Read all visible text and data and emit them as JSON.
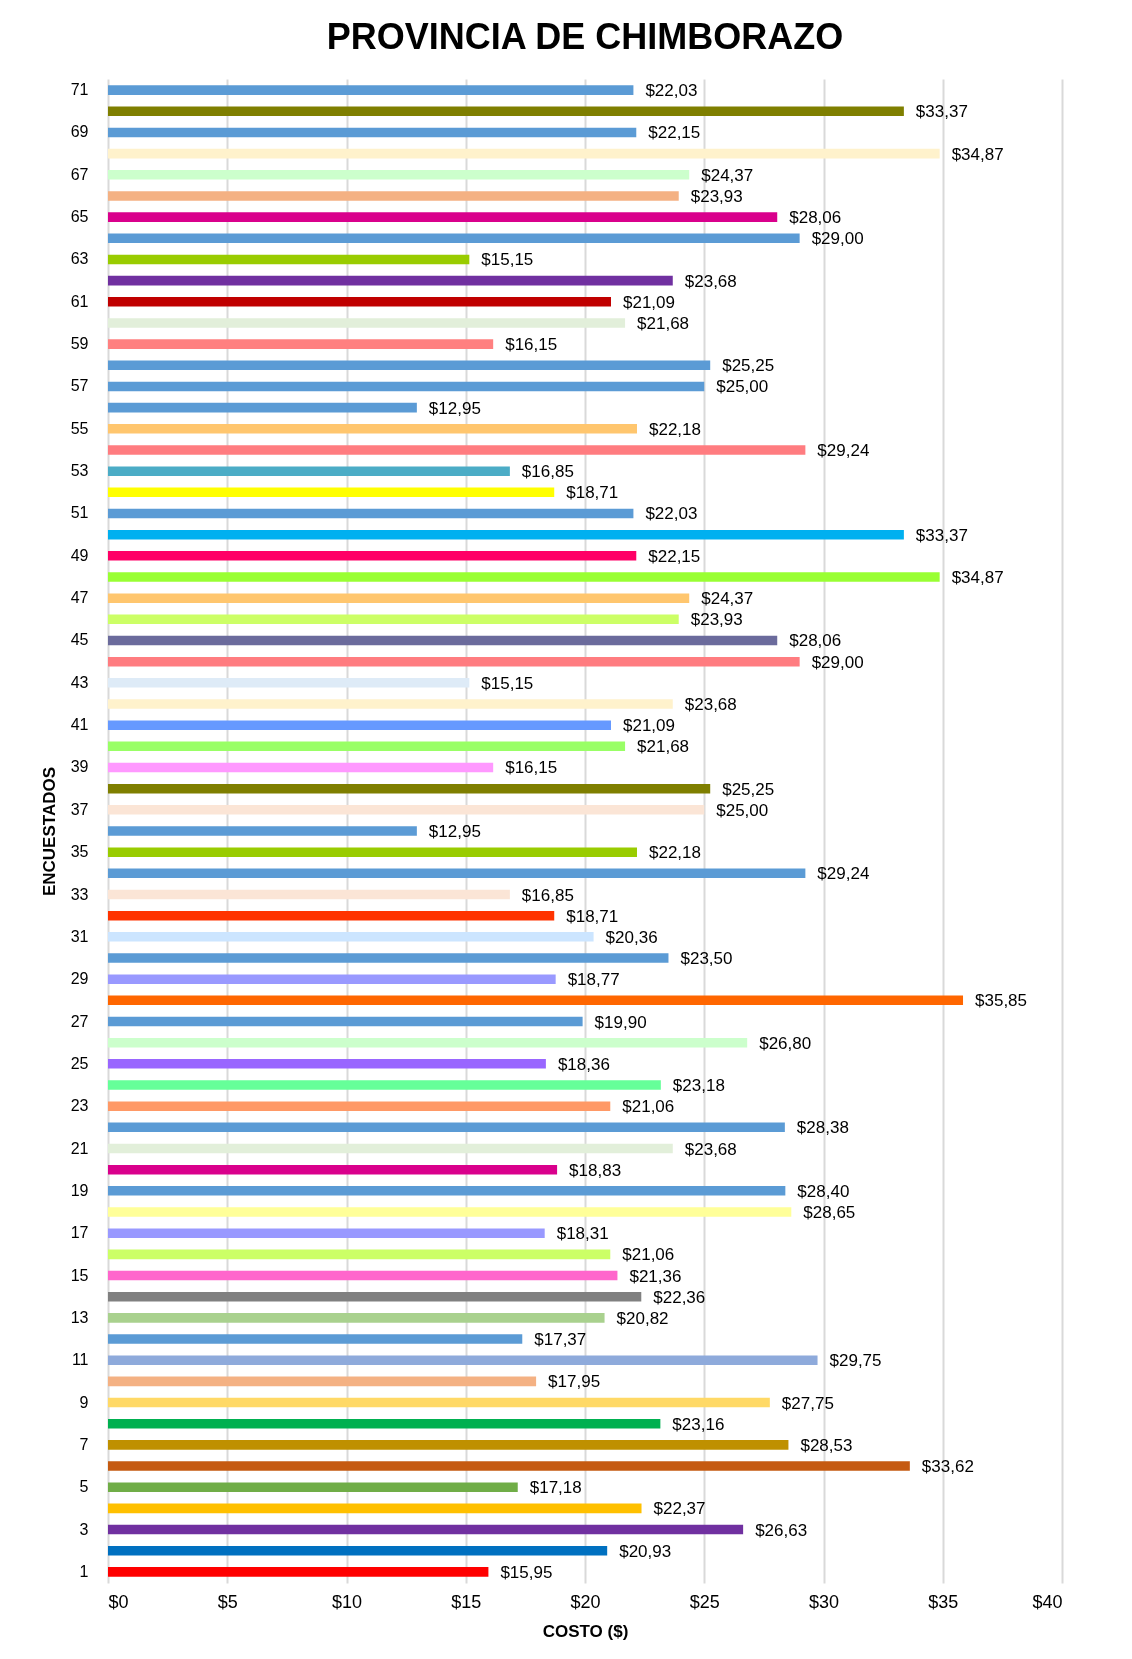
{
  "chart_data": {
    "type": "bar",
    "orientation": "horizontal",
    "title": "PROVINCIA DE CHIMBORAZO",
    "xlabel": "COSTO ($)",
    "ylabel": "ENCUESTADOS",
    "categories": [
      "71",
      null,
      "69",
      null,
      "67",
      null,
      "65",
      null,
      "63",
      null,
      "61",
      null,
      "59",
      null,
      "57",
      null,
      "55",
      null,
      "53",
      null,
      "51",
      null,
      "49",
      null,
      "47",
      null,
      "45",
      null,
      "43",
      null,
      "41",
      null,
      "39",
      null,
      "37",
      null,
      "35",
      null,
      "33",
      null,
      "31",
      null,
      "29",
      null,
      "27",
      null,
      "25",
      null,
      "23",
      null,
      "21",
      null,
      "19",
      null,
      "17",
      null,
      "15",
      null,
      "13",
      null,
      "11",
      null,
      "9",
      null,
      "7",
      null,
      "5",
      null,
      "3",
      null,
      "1"
    ],
    "values": [
      22.03,
      33.37,
      22.15,
      34.87,
      24.37,
      23.93,
      28.06,
      29.0,
      15.15,
      23.68,
      21.09,
      21.68,
      16.15,
      25.25,
      25.0,
      12.95,
      22.18,
      29.24,
      16.85,
      18.71,
      22.03,
      33.37,
      22.15,
      34.87,
      24.37,
      23.93,
      28.06,
      29.0,
      15.15,
      23.68,
      21.09,
      21.68,
      16.15,
      25.25,
      25.0,
      12.95,
      22.18,
      29.24,
      16.85,
      18.71,
      20.36,
      23.5,
      18.77,
      35.85,
      19.9,
      26.8,
      18.36,
      23.18,
      21.06,
      28.38,
      23.68,
      18.83,
      28.4,
      28.65,
      18.31,
      21.06,
      21.36,
      22.36,
      20.82,
      17.37,
      29.75,
      17.95,
      27.75,
      23.16,
      28.53,
      33.62,
      17.18,
      22.37,
      26.63,
      20.93,
      15.95
    ],
    "value_labels": [
      "$22,03",
      "$33,37",
      "$22,15",
      "$34,87",
      "$24,37",
      "$23,93",
      "$28,06",
      "$29,00",
      "$15,15",
      "$23,68",
      "$21,09",
      "$21,68",
      "$16,15",
      "$25,25",
      "$25,00",
      "$12,95",
      "$22,18",
      "$29,24",
      "$16,85",
      "$18,71",
      "$22,03",
      "$33,37",
      "$22,15",
      "$34,87",
      "$24,37",
      "$23,93",
      "$28,06",
      "$29,00",
      "$15,15",
      "$23,68",
      "$21,09",
      "$21,68",
      "$16,15",
      "$25,25",
      "$25,00",
      "$12,95",
      "$22,18",
      "$29,24",
      "$16,85",
      "$18,71",
      "$20,36",
      "$23,50",
      "$18,77",
      "$35,85",
      "$19,90",
      "$26,80",
      "$18,36",
      "$23,18",
      "$21,06",
      "$28,38",
      "$23,68",
      "$18,83",
      "$28,40",
      "$28,65",
      "$18,31",
      "$21,06",
      "$21,36",
      "$22,36",
      "$20,82",
      "$17,37",
      "$29,75",
      "$17,95",
      "$27,75",
      "$23,16",
      "$28,53",
      "$33,62",
      "$17,18",
      "$22,37",
      "$26,63",
      "$20,93",
      "$15,95"
    ],
    "colors": [
      "#5b9bd5",
      "#7f7f00",
      "#5b9bd5",
      "#fff2cc",
      "#ccffcc",
      "#f4b183",
      "#d9008c",
      "#5b9bd5",
      "#99cc00",
      "#7030a0",
      "#c00000",
      "#e2efda",
      "#ff8080",
      "#5b9bd5",
      "#5b9bd5",
      "#5b9bd5",
      "#ffc66e",
      "#ff7c80",
      "#4bacc6",
      "#ffff00",
      "#5b9bd5",
      "#00b0f0",
      "#ff0066",
      "#99ff33",
      "#ffc66e",
      "#ccff66",
      "#6b6b9c",
      "#ff7c80",
      "#deebf7",
      "#fff2cc",
      "#6699ff",
      "#99ff66",
      "#ff99ff",
      "#7f7f00",
      "#fbe5d6",
      "#5b9bd5",
      "#99cc00",
      "#5b9bd5",
      "#fbe5d6",
      "#ff3300",
      "#cce5ff",
      "#5b9bd5",
      "#9999ff",
      "#ff6600",
      "#5b9bd5",
      "#ccffcc",
      "#9966ff",
      "#66ff99",
      "#ff9966",
      "#5b9bd5",
      "#e2efda",
      "#d9008c",
      "#5b9bd5",
      "#ffff99",
      "#9999ff",
      "#ccff66",
      "#ff66cc",
      "#808080",
      "#a9d18e",
      "#5b9bd5",
      "#8eaadb",
      "#f4b183",
      "#ffd966",
      "#00b050",
      "#bf9000",
      "#c55a11",
      "#70ad47",
      "#ffc000",
      "#7030a0",
      "#0070c0",
      "#ff0000"
    ],
    "xlim": [
      0,
      40
    ],
    "xticks": [
      {
        "value": 0,
        "label": "$0"
      },
      {
        "value": 5,
        "label": "$5"
      },
      {
        "value": 10,
        "label": "$10"
      },
      {
        "value": 15,
        "label": "$15"
      },
      {
        "value": 20,
        "label": "$20"
      },
      {
        "value": 25,
        "label": "$25"
      },
      {
        "value": 30,
        "label": "$30"
      },
      {
        "value": 35,
        "label": "$35"
      },
      {
        "value": 40,
        "label": "$40"
      }
    ],
    "grid": "x"
  }
}
